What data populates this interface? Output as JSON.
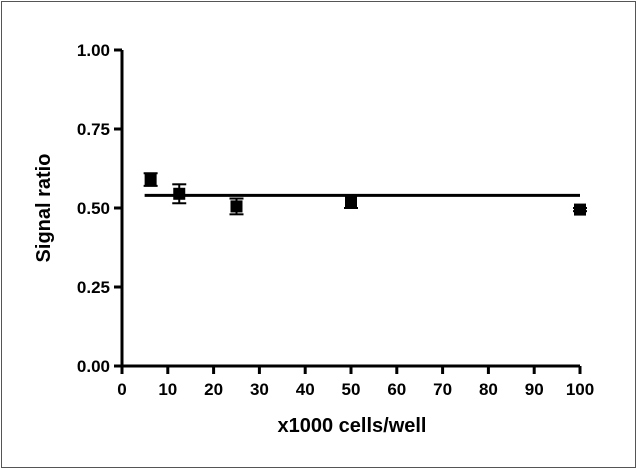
{
  "chart_data": {
    "type": "scatter",
    "xlabel": "x1000 cells/well",
    "ylabel": "Signal ratio",
    "xlim": [
      0,
      100
    ],
    "ylim": [
      0,
      1
    ],
    "x_ticks": [
      0,
      10,
      20,
      30,
      40,
      50,
      60,
      70,
      80,
      90,
      100
    ],
    "x_tick_labels": [
      "0",
      "10",
      "20",
      "30",
      "40",
      "50",
      "60",
      "70",
      "80",
      "90",
      "100"
    ],
    "y_ticks": [
      0,
      0.25,
      0.5,
      0.75,
      1.0
    ],
    "y_tick_labels": [
      "0.00",
      "0.25",
      "0.50",
      "0.75",
      "1.00"
    ],
    "grid": false,
    "series": [
      {
        "points": [
          {
            "x": 6.25,
            "y": 0.59,
            "err": 0.02
          },
          {
            "x": 12.5,
            "y": 0.545,
            "err": 0.03
          },
          {
            "x": 25,
            "y": 0.505,
            "err": 0.025
          },
          {
            "x": 50,
            "y": 0.52,
            "err": 0.02
          },
          {
            "x": 100,
            "y": 0.495,
            "err": 0.005
          }
        ]
      }
    ],
    "fit_line": {
      "x_start": 6.25,
      "x_end": 100,
      "y": 0.54
    },
    "colors": {
      "marker": "#000000",
      "line": "#000000",
      "frame": "#555555"
    }
  }
}
